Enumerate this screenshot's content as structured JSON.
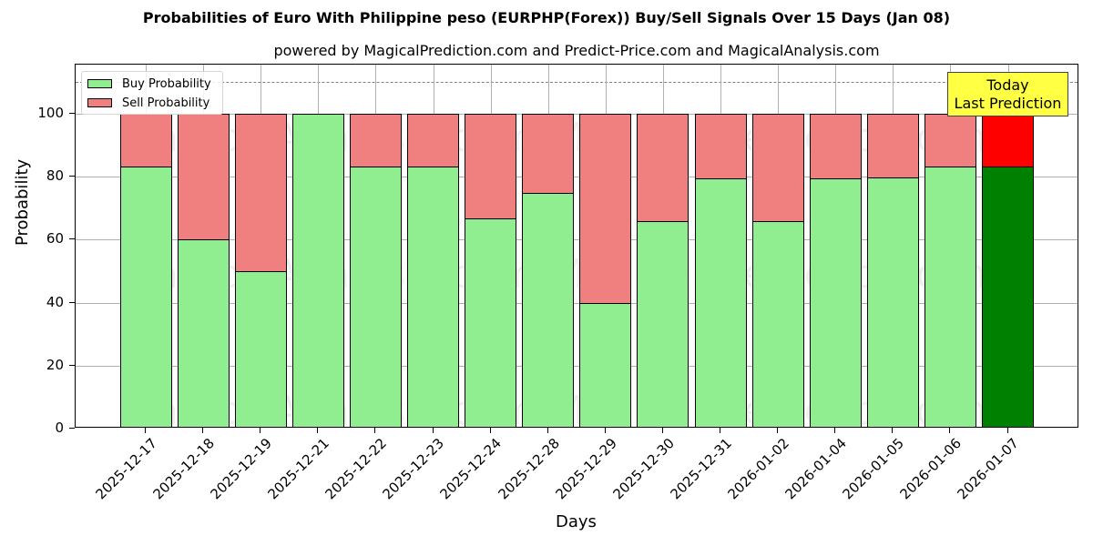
{
  "title": "Probabilities of Euro With Philippine peso (EURPHP(Forex)) Buy/Sell Signals Over 15 Days (Jan 08)",
  "subtitle": "powered by MagicalPrediction.com and Predict-Price.com and MagicalAnalysis.com",
  "legend": {
    "buy_label": "Buy Probability",
    "sell_label": "Sell Probability"
  },
  "annotation": {
    "line1": "Today",
    "line2": "Last Prediction"
  },
  "watermarks": [
    "MagicalAnalysis.com",
    "MagicalPrediction.com"
  ],
  "colors": {
    "buy": "#90ee90",
    "sell": "#f08080",
    "buy_today": "#008000",
    "sell_today": "#ff0000",
    "annotation_bg": "#ffff44",
    "reference_line": "#808080"
  },
  "chart_data": {
    "type": "bar",
    "stacked": true,
    "title": "Probabilities of Euro With Philippine peso (EURPHP(Forex)) Buy/Sell Signals Over 15 Days (Jan 08)",
    "subtitle": "powered by MagicalPrediction.com and Predict-Price.com and MagicalAnalysis.com",
    "xlabel": "Days",
    "ylabel": "Probability",
    "ylim": [
      0,
      115
    ],
    "yticks": [
      0,
      20,
      40,
      60,
      80,
      100
    ],
    "grid": true,
    "legend_position": "upper left",
    "reference_line": {
      "y": 110,
      "style": "dashed"
    },
    "categories": [
      "2025-12-17",
      "2025-12-18",
      "2025-12-19",
      "2025-12-21",
      "2025-12-22",
      "2025-12-23",
      "2025-12-24",
      "2025-12-28",
      "2025-12-29",
      "2025-12-30",
      "2025-12-31",
      "2026-01-02",
      "2026-01-04",
      "2026-01-05",
      "2026-01-06",
      "2026-01-07"
    ],
    "series": [
      {
        "name": "Buy Probability",
        "values": [
          83.3,
          60,
          50,
          100,
          83.3,
          83.3,
          66.7,
          75,
          40,
          66,
          79.5,
          66,
          79.5,
          79.8,
          83.3,
          83.3
        ]
      },
      {
        "name": "Sell Probability",
        "values": [
          16.7,
          40,
          50,
          0,
          16.7,
          16.7,
          33.3,
          25,
          60,
          34,
          20.5,
          34,
          20.5,
          20.2,
          16.7,
          16.7
        ]
      }
    ],
    "highlight": {
      "category": "2026-01-07",
      "label": "Today\nLast Prediction"
    }
  }
}
